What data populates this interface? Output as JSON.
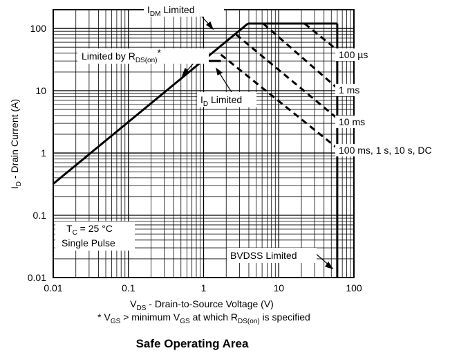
{
  "chart_data": {
    "type": "line",
    "title": "Safe Operating Area",
    "xlabel": {
      "main": "V",
      "sub": "DS",
      "rest": " - Drain-to-Source Voltage (V)"
    },
    "ylabel": {
      "main": "I",
      "sub": "D",
      "rest": " - Drain Current (A)"
    },
    "footnote": {
      "a": "* V",
      "a_sub": "GS",
      "b": " > minimum V",
      "b_sub": "GS",
      "c": " at which R",
      "c_sub": "DS(on)",
      "d": " is specified"
    },
    "x_scale": "log",
    "y_scale": "log",
    "xlim": [
      0.01,
      100
    ],
    "ylim": [
      0.01,
      200
    ],
    "x_ticks": [
      "0.01",
      "0.1",
      "1",
      "10",
      "100"
    ],
    "x_tick_values": [
      0.01,
      0.1,
      1,
      10,
      100
    ],
    "y_ticks": [
      "100",
      "10",
      "1",
      "0.1",
      "0.01"
    ],
    "y_tick_values": [
      100,
      10,
      1,
      0.1,
      0.01
    ],
    "grid": true,
    "series": [
      {
        "key": "rdson",
        "style": "solid",
        "points": [
          [
            0.01,
            0.32
          ],
          [
            3.9,
            120
          ]
        ]
      },
      {
        "key": "idm",
        "style": "solid",
        "points": [
          [
            3.9,
            120
          ],
          [
            60,
            120
          ]
        ]
      },
      {
        "key": "id",
        "style": "solid",
        "points": [
          [
            1.15,
            30
          ],
          [
            1.7,
            30
          ]
        ]
      },
      {
        "key": "bvdss",
        "style": "solid",
        "points": [
          [
            60,
            120
          ],
          [
            60,
            0.01
          ]
        ]
      },
      {
        "key": "s100us",
        "style": "dashed",
        "points": [
          [
            22,
            120
          ],
          [
            60,
            45
          ]
        ]
      },
      {
        "key": "s1ms",
        "style": "dashed",
        "points": [
          [
            6.2,
            120
          ],
          [
            60,
            11
          ]
        ]
      },
      {
        "key": "s10ms",
        "style": "dashed",
        "points": [
          [
            2.7,
            80
          ],
          [
            60,
            3.6
          ]
        ]
      },
      {
        "key": "sDC",
        "style": "dashed",
        "points": [
          [
            1.7,
            38
          ],
          [
            60,
            1.2
          ]
        ]
      }
    ],
    "annotations": {
      "idm": {
        "main": "I",
        "sub": "DM",
        "rest": " Limited"
      },
      "rdson": {
        "main": "Limited by R",
        "sub": "DS(on)",
        "rest": "*"
      },
      "id": {
        "main": "I",
        "sub": "D",
        "rest": " Limited"
      },
      "bvdss": "BVDSS Limited",
      "t100us": "100 µs",
      "t1ms": "1 ms",
      "t10ms": "10 ms",
      "tdc": "100 ms, 1 s, 10 s, DC",
      "tc": {
        "main": "T",
        "sub": "C",
        "rest": " = 25 °C"
      },
      "pulse": "Single Pulse"
    },
    "colors": {
      "line": "#000000",
      "grid": "#000000",
      "background": "#ffffff"
    }
  }
}
